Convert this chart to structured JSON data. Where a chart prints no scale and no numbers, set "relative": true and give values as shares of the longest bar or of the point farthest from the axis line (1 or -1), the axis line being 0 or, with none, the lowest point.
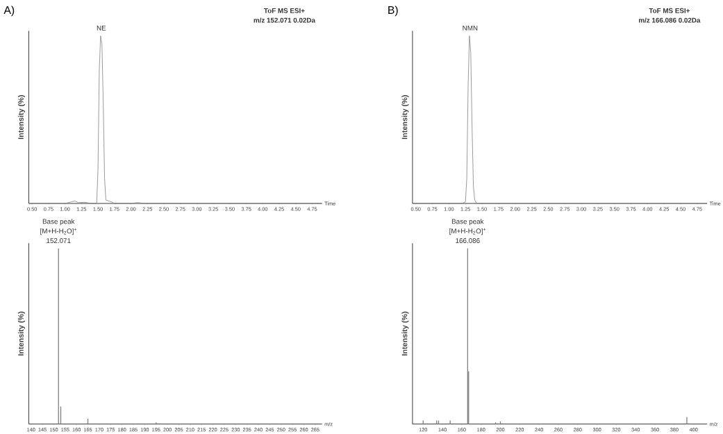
{
  "chart_data": [
    {
      "type": "line",
      "title": "A)",
      "subtitle": "ToF MS ESI+",
      "xlabel": "Time",
      "ylabel": "Intensity (%)",
      "relative": true,
      "color": "#7f7f7f",
      "annotations": [
        "m/z 152.071  0.02Da",
        {
          "text": "NE",
          "x": 1.55,
          "y": 1
        }
      ],
      "xlim": [
        0.45,
        4.9
      ],
      "xticks": [
        {
          "value": 0.5,
          "label": "0.50"
        },
        {
          "value": 0.75,
          "label": "0.75"
        },
        {
          "value": 1.0,
          "label": "1.00"
        },
        {
          "value": 1.25,
          "label": "1.25"
        },
        {
          "value": 1.5,
          "label": "1.50"
        },
        {
          "value": 1.75,
          "label": "1.75"
        },
        {
          "value": 2.0,
          "label": "2.00"
        },
        {
          "value": 2.25,
          "label": "2.25"
        },
        {
          "value": 2.5,
          "label": "2.50"
        },
        {
          "value": 2.75,
          "label": "2.75"
        },
        {
          "value": 3.0,
          "label": "3.00"
        },
        {
          "value": 3.25,
          "label": "3.25"
        },
        {
          "value": 3.5,
          "label": "3.50"
        },
        {
          "value": 3.75,
          "label": "3.75"
        },
        {
          "value": 4.0,
          "label": "4.00"
        },
        {
          "value": 4.25,
          "label": "4.25"
        },
        {
          "value": 4.5,
          "label": "4.50"
        },
        {
          "value": 4.75,
          "label": "4.75"
        }
      ],
      "x": [
        0.45,
        1.0,
        1.1,
        1.15,
        1.2,
        1.3,
        1.4,
        1.48,
        1.5,
        1.52,
        1.54,
        1.56,
        1.58,
        1.6,
        1.62,
        1.7,
        1.75,
        2.0,
        2.1,
        2.2,
        4.9
      ],
      "values": [
        0,
        0,
        0.01,
        0.015,
        0.005,
        0.007,
        0,
        0,
        0.2,
        0.8,
        1,
        0.95,
        0.6,
        0.15,
        0.02,
        0.01,
        0,
        0,
        0.005,
        0,
        0
      ]
    },
    {
      "type": "bar",
      "xlabel": "m/z",
      "ylabel": "Intensity (%)",
      "relative": true,
      "color": "#7f7f7f",
      "annotations": [
        "Base peak",
        {
          "text": "[M+H-H$_{2}$O]$^{+}$",
          "x": 152.071,
          "y": 1
        },
        {
          "text": "152.071",
          "x": 152.071,
          "y": 1
        }
      ],
      "xlim": [
        139,
        268
      ],
      "xticks": [
        {
          "value": 140,
          "label": "140"
        },
        {
          "value": 145,
          "label": "145"
        },
        {
          "value": 150,
          "label": "150"
        },
        {
          "value": 155,
          "label": "155"
        },
        {
          "value": 160,
          "label": "160"
        },
        {
          "value": 165,
          "label": "165"
        },
        {
          "value": 170,
          "label": "170"
        },
        {
          "value": 175,
          "label": "175"
        },
        {
          "value": 180,
          "label": "180"
        },
        {
          "value": 185,
          "label": "185"
        },
        {
          "value": 190,
          "label": "190"
        },
        {
          "value": 195,
          "label": "195"
        },
        {
          "value": 200,
          "label": "200"
        },
        {
          "value": 205,
          "label": "205"
        },
        {
          "value": 210,
          "label": "210"
        },
        {
          "value": 215,
          "label": "215"
        },
        {
          "value": 220,
          "label": "220"
        },
        {
          "value": 225,
          "label": "225"
        },
        {
          "value": 230,
          "label": "230"
        },
        {
          "value": 235,
          "label": "235"
        },
        {
          "value": 240,
          "label": "240"
        },
        {
          "value": 245,
          "label": "245"
        },
        {
          "value": 250,
          "label": "250"
        },
        {
          "value": 255,
          "label": "255"
        },
        {
          "value": 260,
          "label": "260"
        },
        {
          "value": 265,
          "label": "265"
        }
      ],
      "x": [
        152.071,
        153.07,
        165.0,
        195.0
      ],
      "values": [
        1,
        0.1,
        0.03,
        0.01
      ]
    },
    {
      "type": "line",
      "title": "B)",
      "subtitle": "ToF MS ESI+",
      "xlabel": "Time",
      "ylabel": "Intensity (%)",
      "relative": true,
      "color": "#7f7f7f",
      "annotations": [
        "m/z 166.086  0.02Da",
        {
          "text": "NMN",
          "x": 1.32,
          "y": 1
        }
      ],
      "xlim": [
        0.45,
        4.9
      ],
      "xticks": [
        {
          "value": 0.5,
          "label": "0.50"
        },
        {
          "value": 0.75,
          "label": "0.75"
        },
        {
          "value": 1.0,
          "label": "1.00"
        },
        {
          "value": 1.25,
          "label": "1.25"
        },
        {
          "value": 1.5,
          "label": "1.50"
        },
        {
          "value": 1.75,
          "label": "1.75"
        },
        {
          "value": 2.0,
          "label": "2.00"
        },
        {
          "value": 2.25,
          "label": "2.25"
        },
        {
          "value": 2.5,
          "label": "2.50"
        },
        {
          "value": 2.75,
          "label": "2.75"
        },
        {
          "value": 3.0,
          "label": "3.00"
        },
        {
          "value": 3.25,
          "label": "3.25"
        },
        {
          "value": 3.5,
          "label": "3.50"
        },
        {
          "value": 3.75,
          "label": "3.75"
        },
        {
          "value": 4.0,
          "label": "4.00"
        },
        {
          "value": 4.25,
          "label": "4.25"
        },
        {
          "value": 4.5,
          "label": "4.50"
        },
        {
          "value": 4.75,
          "label": "4.75"
        }
      ],
      "x": [
        0.45,
        1.2,
        1.25,
        1.27,
        1.29,
        1.31,
        1.33,
        1.35,
        1.37,
        1.39,
        1.42,
        1.5,
        4.9
      ],
      "values": [
        0,
        0,
        0.01,
        0.15,
        0.7,
        1,
        0.9,
        0.45,
        0.1,
        0.02,
        0,
        0,
        0
      ]
    },
    {
      "type": "bar",
      "xlabel": "m/z",
      "ylabel": "Intensity (%)",
      "relative": true,
      "color": "#7f7f7f",
      "annotations": [
        "Base peak",
        {
          "text": "[M+H-H$_{2}$O]$^{+}$",
          "x": 166.086,
          "y": 1
        },
        {
          "text": "166.086",
          "x": 166.086,
          "y": 1
        }
      ],
      "xlim": [
        109,
        414
      ],
      "xticks": [
        {
          "value": 120,
          "label": "120"
        },
        {
          "value": 140,
          "label": "140"
        },
        {
          "value": 160,
          "label": "160"
        },
        {
          "value": 180,
          "label": "180"
        },
        {
          "value": 200,
          "label": "200"
        },
        {
          "value": 220,
          "label": "220"
        },
        {
          "value": 240,
          "label": "240"
        },
        {
          "value": 260,
          "label": "260"
        },
        {
          "value": 280,
          "label": "280"
        },
        {
          "value": 300,
          "label": "300"
        },
        {
          "value": 320,
          "label": "320"
        },
        {
          "value": 340,
          "label": "340"
        },
        {
          "value": 360,
          "label": "360"
        },
        {
          "value": 380,
          "label": "380"
        },
        {
          "value": 400,
          "label": "400"
        }
      ],
      "x": [
        120.0,
        134.0,
        136.0,
        148.0,
        166.086,
        167.09,
        195.0,
        200.0,
        393.0
      ],
      "values": [
        0.02,
        0.02,
        0.02,
        0.02,
        1,
        0.3,
        0.01,
        0.015,
        0.04
      ]
    }
  ]
}
